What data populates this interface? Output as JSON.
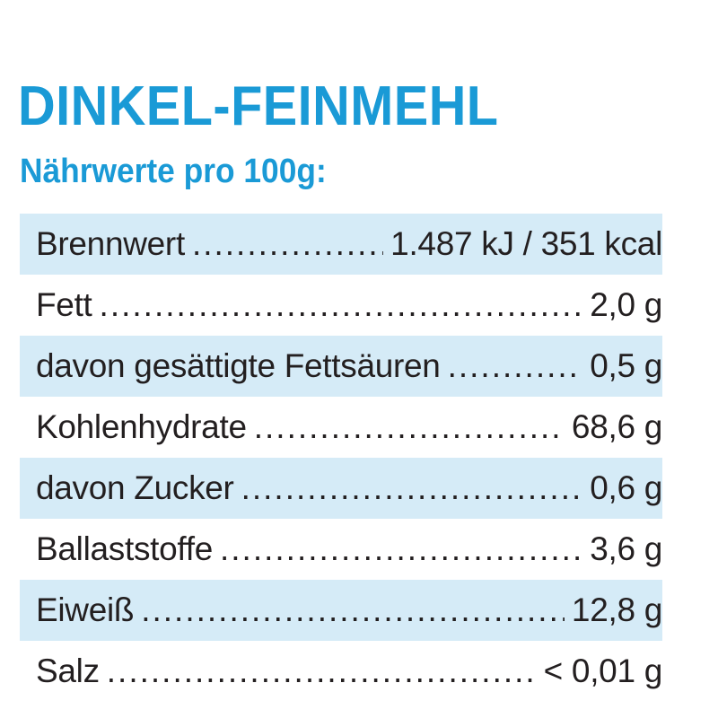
{
  "header": {
    "title": "DINKEL-FEINMEHL",
    "subtitle": "Nährwerte pro 100g:"
  },
  "colors": {
    "accent": "#1a9ad6",
    "row_shade": "#d5ebf7",
    "text": "#231f20"
  },
  "nutrition": {
    "rows": [
      {
        "label": "Brennwert",
        "value": "1.487 kJ / 351 kcal"
      },
      {
        "label": "Fett",
        "value": "2,0 g"
      },
      {
        "label": "davon gesättigte Fettsäuren",
        "value": "0,5 g"
      },
      {
        "label": "Kohlenhydrate",
        "value": "68,6 g"
      },
      {
        "label": "davon Zucker",
        "value": "0,6 g"
      },
      {
        "label": "Ballaststoffe",
        "value": "3,6 g"
      },
      {
        "label": "Eiweiß",
        "value": "12,8 g"
      },
      {
        "label": "Salz",
        "value": "< 0,01 g"
      }
    ]
  }
}
